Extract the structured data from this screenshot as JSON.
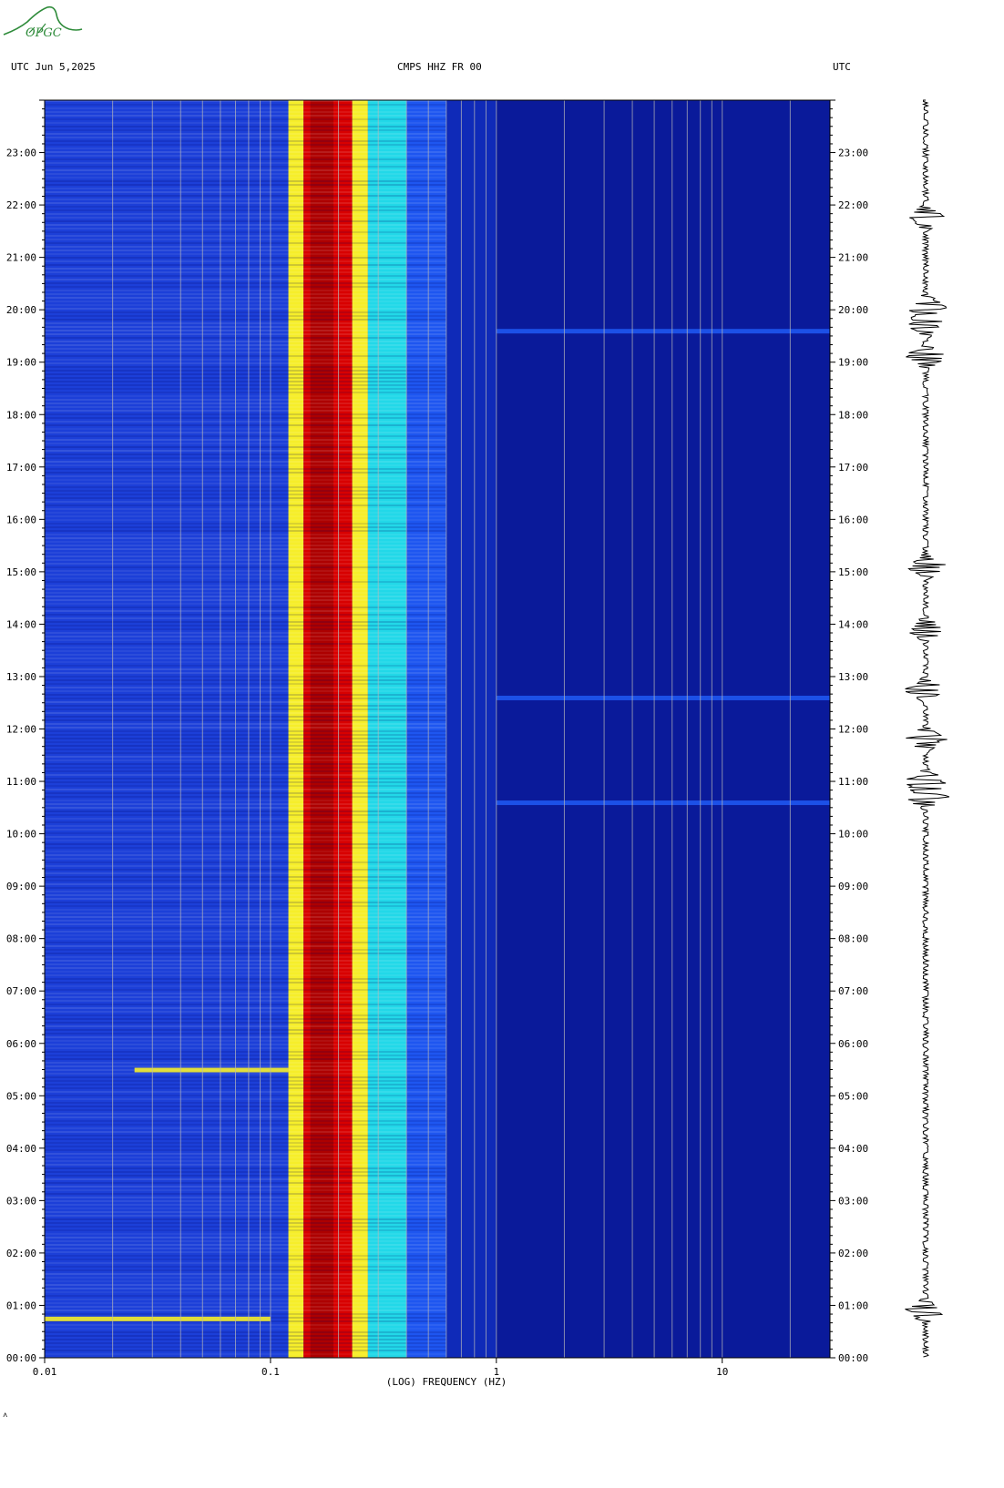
{
  "header": {
    "left": "UTC  Jun 5,2025",
    "center": "CMPS HHZ FR 00",
    "right": "UTC"
  },
  "logo_text": "OPGC",
  "footer_mark": "˄",
  "colors": {
    "background": "#ffffff",
    "cold": "#0a1a9a",
    "mid": "#1e56f0",
    "cyan": "#22d8e8",
    "yellow": "#f6ee2a",
    "orange": "#ff6a00",
    "red": "#d80000",
    "darkred": "#8a0000",
    "logo": "#2e8b3a"
  },
  "chart_data": {
    "type": "heatmap",
    "title": "CMPS HHZ FR 00",
    "xlabel": "(LOG) FREQUENCY (HZ)",
    "x_scale": "log",
    "xlim": [
      0.01,
      30
    ],
    "x_tick_labels": [
      "0.01",
      "0.1",
      "1",
      "10"
    ],
    "x_tick_values": [
      0.01,
      0.1,
      1,
      10
    ],
    "ylabel": "UTC",
    "y_tick_labels": [
      "00:00",
      "01:00",
      "02:00",
      "03:00",
      "04:00",
      "05:00",
      "06:00",
      "07:00",
      "08:00",
      "09:00",
      "10:00",
      "11:00",
      "12:00",
      "13:00",
      "14:00",
      "15:00",
      "16:00",
      "17:00",
      "18:00",
      "19:00",
      "20:00",
      "21:00",
      "22:00",
      "23:00"
    ],
    "ylim_hours": [
      0,
      24
    ],
    "energy_bands_hz": [
      {
        "from": 0.12,
        "to": 0.14,
        "level": "yellow"
      },
      {
        "from": 0.14,
        "to": 0.23,
        "level": "red"
      },
      {
        "from": 0.23,
        "to": 0.27,
        "level": "yellow"
      },
      {
        "from": 0.27,
        "to": 0.4,
        "level": "cyan"
      },
      {
        "from": 0.4,
        "to": 0.6,
        "level": "mid"
      }
    ],
    "features": [
      {
        "hour": 0.75,
        "from_hz": 0.01,
        "to_hz": 0.1,
        "level": "yellow"
      },
      {
        "hour": 5.5,
        "from_hz": 0.025,
        "to_hz": 0.12,
        "level": "yellow"
      },
      {
        "hour": 19.6,
        "from_hz": 1.0,
        "to_hz": 30,
        "level": "mid"
      },
      {
        "hour": 12.6,
        "from_hz": 1.0,
        "to_hz": 30,
        "level": "mid"
      },
      {
        "hour": 10.6,
        "from_hz": 1.0,
        "to_hz": 30,
        "level": "mid"
      }
    ],
    "seismogram_events_hours": [
      0.9,
      10.7,
      11.0,
      11.8,
      12.75,
      13.9,
      15.1,
      19.1,
      19.7,
      20.05,
      21.75
    ]
  }
}
